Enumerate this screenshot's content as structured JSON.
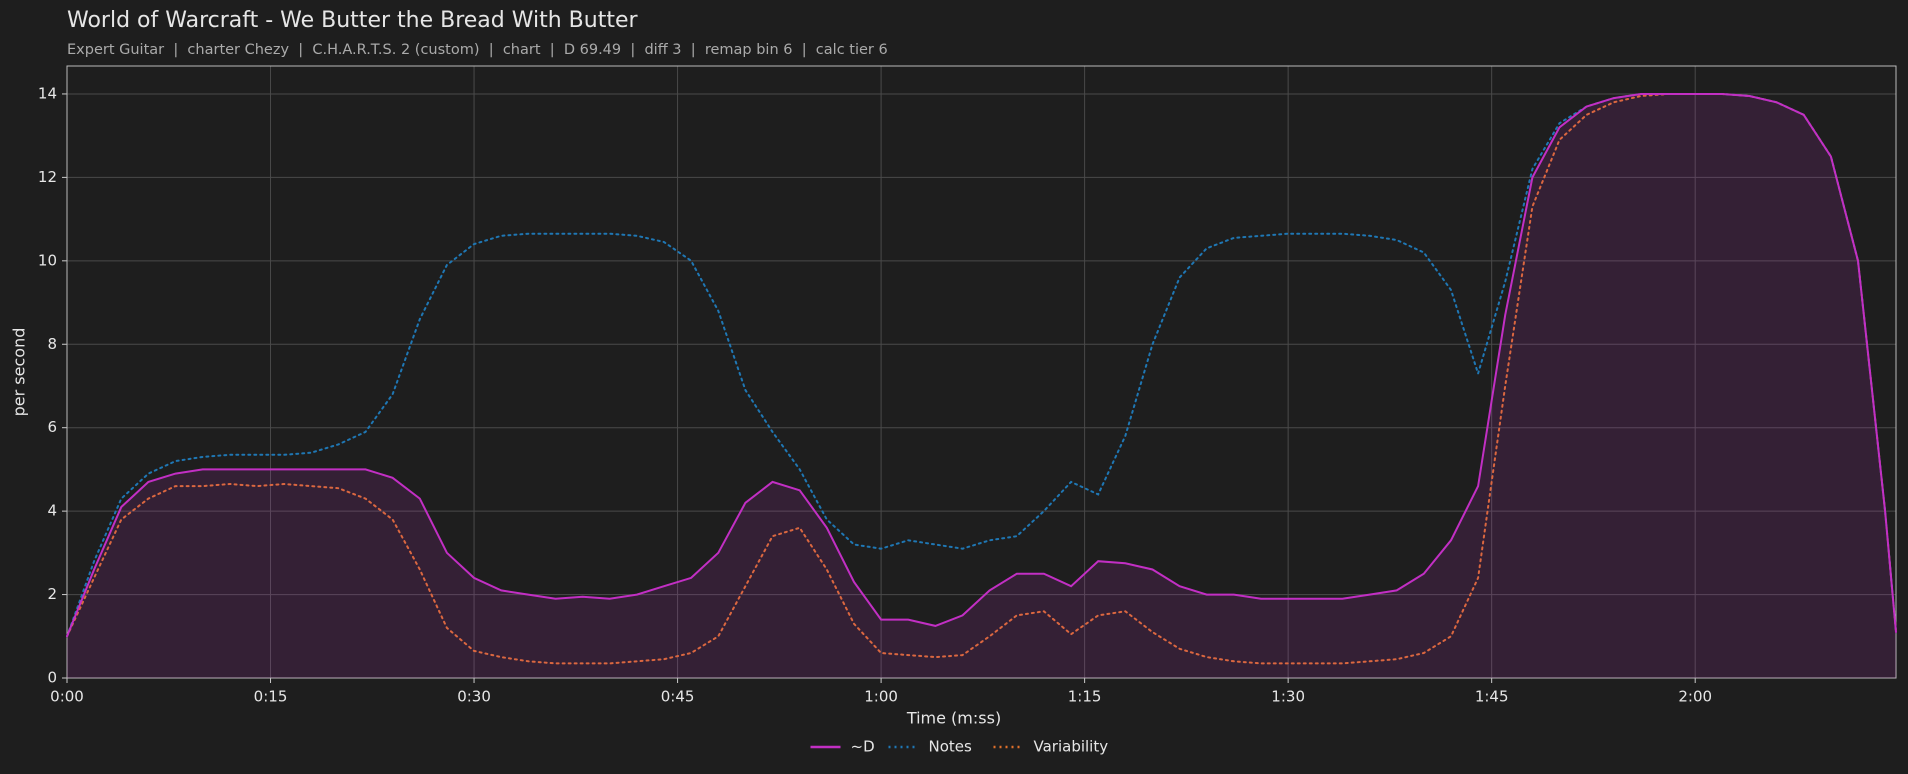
{
  "chart_data": {
    "type": "line",
    "title": "World of Warcraft - We Butter the Bread With Butter",
    "subtitle": "Expert Guitar  |  charter Chezy  |  C.H.A.R.T.S. 2 (custom)  |  chart  |  D 69.49  |  diff 3  |  remap bin 6  |  calc tier 6",
    "xlabel": "Time (m:ss)",
    "ylabel": "per second",
    "x": [
      0,
      2,
      4,
      6,
      8,
      10,
      12,
      14,
      16,
      18,
      20,
      22,
      24,
      26,
      28,
      30,
      32,
      34,
      36,
      38,
      40,
      42,
      44,
      46,
      48,
      50,
      52,
      54,
      56,
      58,
      60,
      62,
      64,
      66,
      68,
      70,
      72,
      74,
      76,
      78,
      80,
      82,
      84,
      86,
      88,
      90,
      92,
      94,
      96,
      98,
      100,
      102,
      104,
      106,
      108,
      110,
      112,
      114,
      116,
      118,
      120,
      122,
      124,
      126,
      128,
      130,
      132,
      134,
      134.8
    ],
    "series": [
      {
        "name": "~D",
        "color": "#c22fc4",
        "style": "solid",
        "fill": true,
        "values": [
          1.0,
          2.6,
          4.1,
          4.7,
          4.9,
          5.0,
          5.0,
          5.0,
          5.0,
          5.0,
          5.0,
          5.0,
          4.8,
          4.3,
          3.0,
          2.4,
          2.1,
          2.0,
          1.9,
          1.95,
          1.9,
          2.0,
          2.2,
          2.4,
          3.0,
          4.2,
          4.7,
          4.5,
          3.6,
          2.3,
          1.4,
          1.4,
          1.25,
          1.5,
          2.1,
          2.5,
          2.5,
          2.2,
          2.8,
          2.75,
          2.6,
          2.2,
          2.0,
          2.0,
          1.9,
          1.9,
          1.9,
          1.9,
          2.0,
          2.1,
          2.5,
          3.3,
          4.6,
          8.7,
          12.0,
          13.2,
          13.7,
          13.9,
          14.0,
          14.0,
          14.0,
          14.0,
          13.95,
          13.8,
          13.5,
          12.5,
          10.0,
          4.0,
          1.1
        ]
      },
      {
        "name": "Notes",
        "color": "#1f77b4",
        "style": "dotted",
        "fill": false,
        "values": [
          1.0,
          2.8,
          4.3,
          4.9,
          5.2,
          5.3,
          5.35,
          5.35,
          5.35,
          5.4,
          5.6,
          5.9,
          6.8,
          8.6,
          9.9,
          10.4,
          10.6,
          10.65,
          10.65,
          10.65,
          10.65,
          10.6,
          10.45,
          10.0,
          8.8,
          6.9,
          5.9,
          5.0,
          3.8,
          3.2,
          3.1,
          3.3,
          3.2,
          3.1,
          3.3,
          3.4,
          4.0,
          4.7,
          4.4,
          5.8,
          8.0,
          9.6,
          10.3,
          10.55,
          10.6,
          10.65,
          10.65,
          10.65,
          10.6,
          10.5,
          10.2,
          9.3,
          7.3,
          9.5,
          12.2,
          13.3,
          13.7,
          13.9,
          14.0,
          14.0,
          14.0,
          14.0,
          13.95,
          13.8,
          13.5,
          12.5,
          10.0,
          4.0,
          1.1
        ]
      },
      {
        "name": "Variability",
        "color": "#e0702a",
        "style": "dotted",
        "fill": false,
        "values": [
          1.0,
          2.4,
          3.8,
          4.3,
          4.6,
          4.6,
          4.65,
          4.6,
          4.65,
          4.6,
          4.55,
          4.3,
          3.8,
          2.6,
          1.2,
          0.65,
          0.5,
          0.4,
          0.35,
          0.35,
          0.35,
          0.4,
          0.45,
          0.6,
          1.0,
          2.2,
          3.4,
          3.6,
          2.6,
          1.3,
          0.6,
          0.55,
          0.5,
          0.55,
          1.0,
          1.5,
          1.6,
          1.05,
          1.5,
          1.6,
          1.1,
          0.7,
          0.5,
          0.4,
          0.35,
          0.35,
          0.35,
          0.35,
          0.4,
          0.45,
          0.6,
          1.0,
          2.4,
          7.0,
          11.3,
          12.9,
          13.5,
          13.8,
          13.95,
          14.0,
          14.0,
          14.0,
          13.95,
          13.8,
          13.5,
          12.5,
          10.0,
          4.0,
          1.1
        ]
      }
    ],
    "xlim": [
      0,
      134.8
    ],
    "xticks": [
      {
        "value": 0,
        "label": "0:00"
      },
      {
        "value": 15,
        "label": "0:15"
      },
      {
        "value": 30,
        "label": "0:30"
      },
      {
        "value": 45,
        "label": "0:45"
      },
      {
        "value": 60,
        "label": "1:00"
      },
      {
        "value": 75,
        "label": "1:15"
      },
      {
        "value": 90,
        "label": "1:30"
      },
      {
        "value": 105,
        "label": "1:45"
      },
      {
        "value": 120,
        "label": "2:00"
      }
    ],
    "ylim": [
      0,
      14.67
    ],
    "yticks": [
      0,
      2,
      4,
      6,
      8,
      10,
      12,
      14
    ],
    "grid": true,
    "legend": "bottom"
  }
}
